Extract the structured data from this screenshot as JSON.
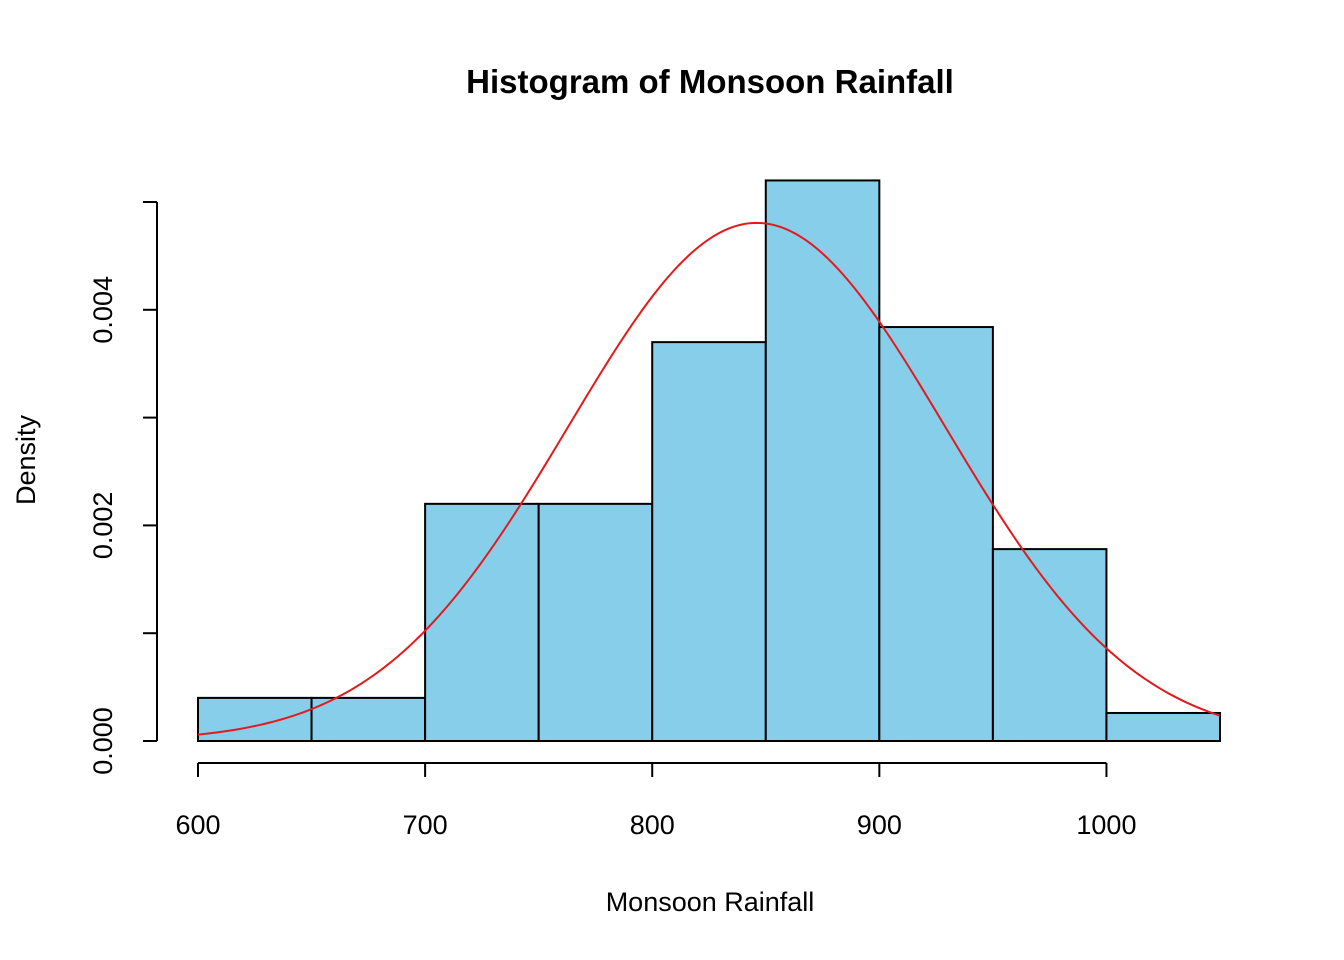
{
  "chart_data": {
    "type": "bar",
    "title": "Histogram of Monsoon Rainfall",
    "xlabel": "Monsoon Rainfall",
    "ylabel": "Density",
    "xlim": [
      600,
      1050
    ],
    "ylim": [
      0,
      0.005
    ],
    "x_ticks": [
      600,
      700,
      800,
      900,
      1000
    ],
    "x_tick_labels": [
      "600",
      "700",
      "800",
      "900",
      "1000"
    ],
    "y_ticks": [
      0,
      0.001,
      0.002,
      0.003,
      0.004,
      0.005
    ],
    "y_tick_labels": [
      "0.000",
      "0.002",
      "0.004"
    ],
    "y_labeled_ticks": [
      0,
      0.002,
      0.004
    ],
    "bins": [
      {
        "x0": 600,
        "x1": 650,
        "density": 0.0004
      },
      {
        "x0": 650,
        "x1": 700,
        "density": 0.0004
      },
      {
        "x0": 700,
        "x1": 750,
        "density": 0.0022
      },
      {
        "x0": 750,
        "x1": 800,
        "density": 0.0022
      },
      {
        "x0": 800,
        "x1": 850,
        "density": 0.0037
      },
      {
        "x0": 850,
        "x1": 900,
        "density": 0.0052
      },
      {
        "x0": 900,
        "x1": 950,
        "density": 0.00384
      },
      {
        "x0": 950,
        "x1": 1000,
        "density": 0.00178
      },
      {
        "x0": 1000,
        "x1": 1050,
        "density": 0.00026
      }
    ],
    "density_curve": {
      "distribution": "normal",
      "mean": 846,
      "sd": 83,
      "x_range": [
        600,
        1050
      ]
    },
    "colors": {
      "bar_fill": "#87ceeb",
      "bar_stroke": "#000000",
      "curve": "#e31a1c"
    },
    "grid": false,
    "legend": "none"
  }
}
